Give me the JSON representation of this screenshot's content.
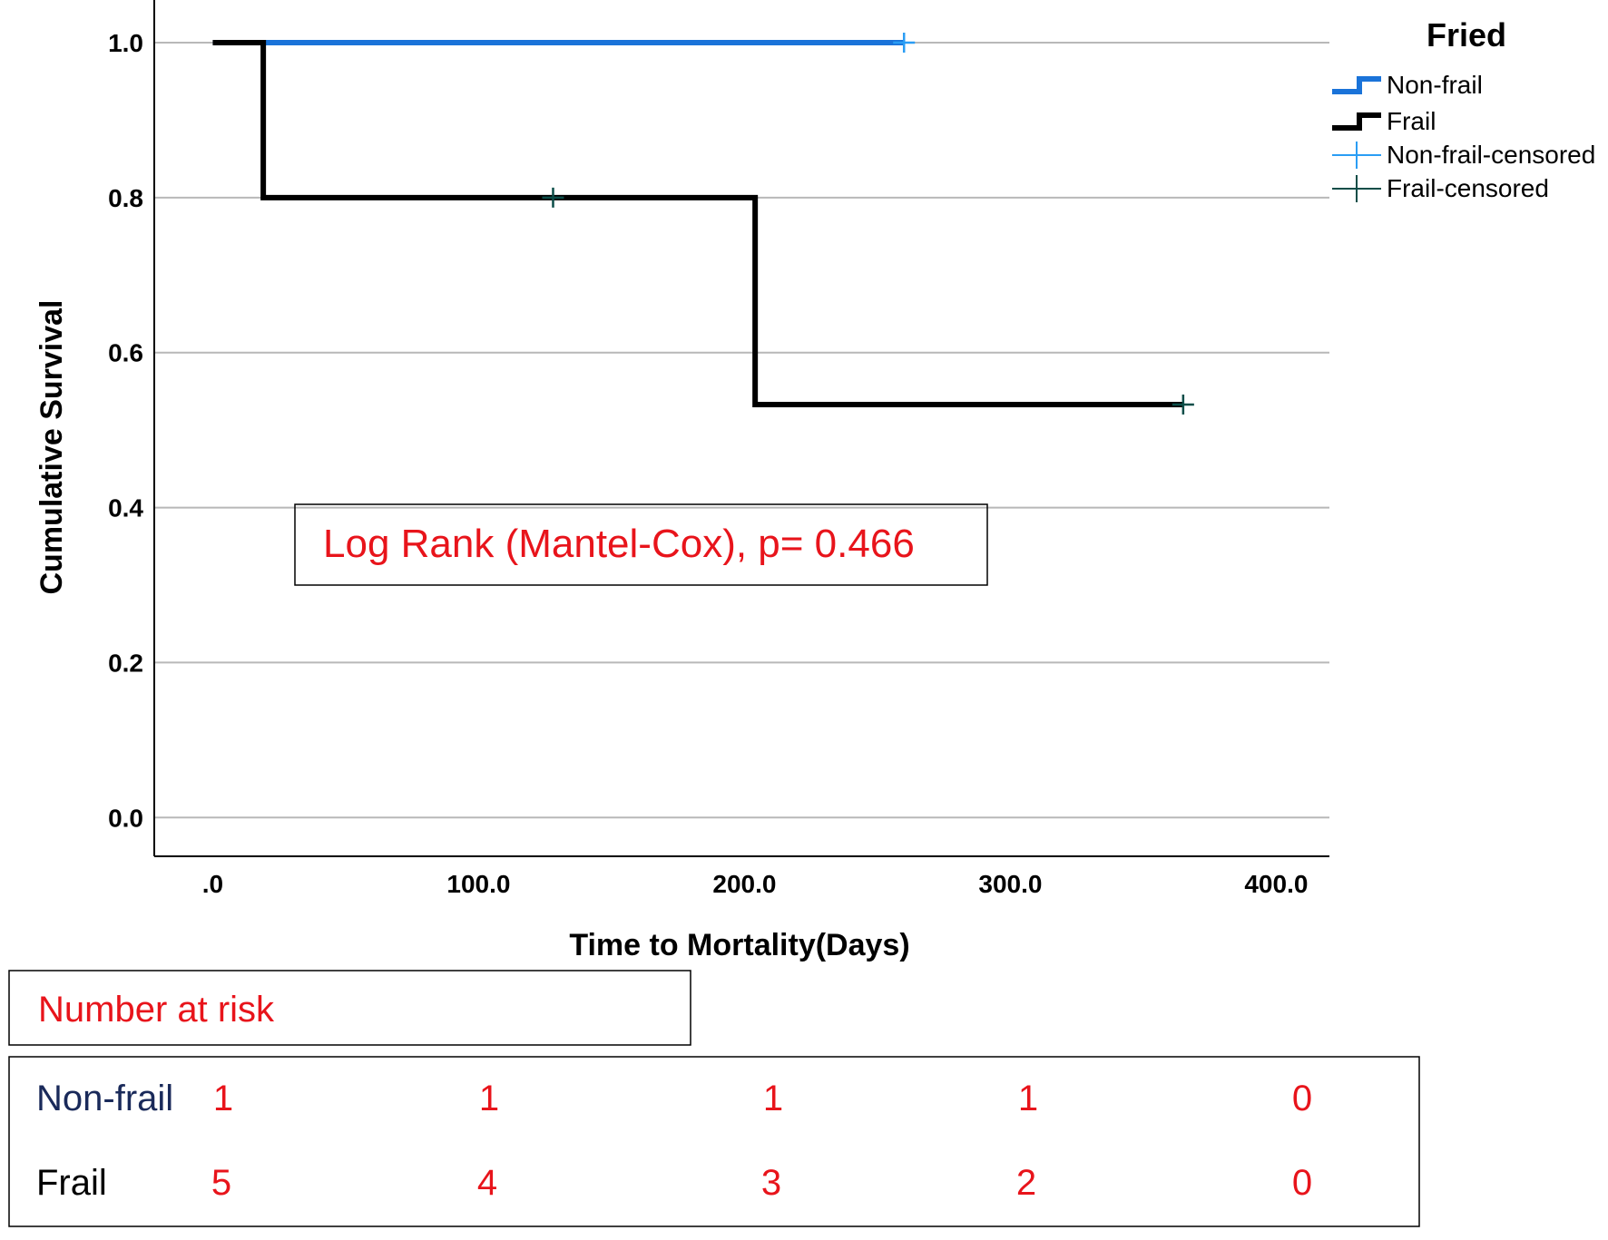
{
  "chart_data": {
    "type": "line",
    "subtype": "kaplan-meier step",
    "xlabel": "Time to Mortality(Days)",
    "ylabel": "Cumulative Survival",
    "xlim": [
      -22,
      420
    ],
    "ylim": [
      -0.05,
      1.055
    ],
    "x_ticks": [
      0,
      100,
      200,
      300,
      400
    ],
    "x_tick_labels": [
      ".0",
      "100.0",
      "200.0",
      "300.0",
      "400.0"
    ],
    "y_ticks": [
      0,
      0.2,
      0.4,
      0.6,
      0.8,
      1.0
    ],
    "y_tick_labels": [
      "0.0",
      "0.2",
      "0.4",
      "0.6",
      "0.8",
      "1.0"
    ],
    "grid": "horizontal",
    "legend": {
      "title": "Fried",
      "placement": "top-right outside plot",
      "entries": [
        "Non-frail",
        "Frail",
        "Non-frail-censored",
        "Frail-censored"
      ]
    },
    "series": [
      {
        "name": "Non-frail",
        "color": "#1a73d9",
        "step_points": [
          [
            0,
            1.0
          ],
          [
            260,
            1.0
          ]
        ],
        "censored": [
          [
            260,
            1.0
          ]
        ],
        "censor_color": "#2a9df4"
      },
      {
        "name": "Frail",
        "color": "#000000",
        "step_points": [
          [
            0,
            1.0
          ],
          [
            19,
            1.0
          ],
          [
            19,
            0.8
          ],
          [
            204,
            0.8
          ],
          [
            204,
            0.533
          ],
          [
            365,
            0.533
          ]
        ],
        "censored": [
          [
            128,
            0.8
          ],
          [
            365,
            0.533
          ]
        ],
        "censor_color": "#0b4d48"
      }
    ],
    "annotation": "Log Rank (Mantel-Cox), p= 0.466"
  },
  "risk_table": {
    "title": "Number at risk",
    "rows": [
      {
        "label": "Non-frail",
        "label_color": "#1a2a5a",
        "values": [
          "1",
          "1",
          "1",
          "1",
          "0"
        ]
      },
      {
        "label": "Frail",
        "label_color": "#000000",
        "values": [
          "5",
          "4",
          "3",
          "2",
          "0"
        ]
      }
    ]
  },
  "colors": {
    "accent_text": "#e8141b",
    "gridline": "#b8b8b8",
    "axis": "#000000"
  }
}
